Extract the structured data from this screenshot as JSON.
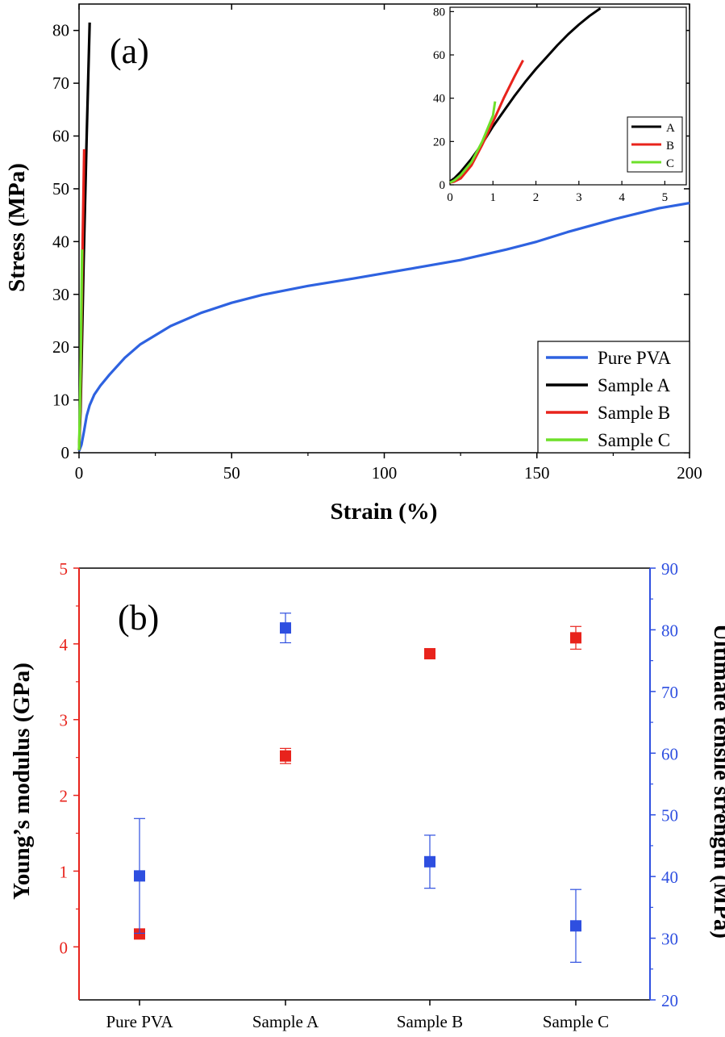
{
  "chart_data": [
    {
      "id": "a",
      "type": "line",
      "panel_label": "(a)",
      "xlabel": "Strain (%)",
      "ylabel": "Stress (MPa)",
      "xlim": [
        0,
        200
      ],
      "ylim": [
        0,
        85
      ],
      "xticks": [
        0,
        50,
        100,
        150,
        200
      ],
      "yticks": [
        0,
        10,
        20,
        30,
        40,
        50,
        60,
        70,
        80
      ],
      "legend_position": "bottom-right",
      "series": [
        {
          "name": "Pure PVA",
          "color": "#2e62e0",
          "x": [
            0,
            0.8,
            1.6,
            2.5,
            3.5,
            5,
            7,
            10,
            15,
            20,
            30,
            40,
            50,
            60,
            75,
            90,
            100,
            110,
            125,
            140,
            150,
            160,
            175,
            190,
            200
          ],
          "y": [
            0.3,
            1.5,
            4,
            7,
            9,
            11,
            12.7,
            14.8,
            18,
            20.5,
            24,
            26.5,
            28.4,
            29.9,
            31.6,
            33,
            34,
            35,
            36.5,
            38.5,
            40,
            41.8,
            44.2,
            46.3,
            47.3
          ]
        },
        {
          "name": "Sample A",
          "color": "#000000",
          "x": [
            0,
            0.5,
            1,
            1.5,
            2,
            2.5,
            3,
            3.5
          ],
          "y": [
            0.5,
            8,
            22,
            36,
            48,
            60,
            71,
            81.5
          ]
        },
        {
          "name": "Sample B",
          "color": "#e8231c",
          "x": [
            0,
            0.4,
            0.8,
            1.2,
            1.7
          ],
          "y": [
            0.5,
            8,
            24,
            40,
            57.5
          ]
        },
        {
          "name": "Sample C",
          "color": "#6ee02a",
          "x": [
            0,
            0.3,
            0.6,
            1.0
          ],
          "y": [
            0.5,
            8,
            20,
            38.5
          ]
        }
      ],
      "inset": {
        "xlim": [
          0,
          5.5
        ],
        "ylim": [
          0,
          82
        ],
        "xticks": [
          0,
          1,
          2,
          3,
          4,
          5
        ],
        "yticks": [
          0,
          20,
          40,
          60,
          80
        ],
        "legend_position": "right",
        "series": [
          {
            "name": "A",
            "color": "#000000",
            "x": [
              0,
              0.1,
              0.25,
              0.5,
              0.75,
              1,
              1.25,
              1.5,
              1.75,
              2,
              2.25,
              2.5,
              2.75,
              3,
              3.25,
              3.5
            ],
            "y": [
              1.5,
              3,
              6,
              12,
              19,
              27,
              34,
              41,
              47.5,
              53.5,
              59,
              64.5,
              69.5,
              74,
              78,
              81.5
            ]
          },
          {
            "name": "B",
            "color": "#e8231c",
            "x": [
              0,
              0.1,
              0.25,
              0.5,
              0.75,
              1,
              1.25,
              1.5,
              1.7
            ],
            "y": [
              1,
              1.5,
              3,
              9,
              18.5,
              29,
              40,
              50,
              57.5
            ]
          },
          {
            "name": "C",
            "color": "#6ee02a",
            "x": [
              0,
              0.1,
              0.25,
              0.5,
              0.75,
              1,
              1.05
            ],
            "y": [
              1,
              2,
              4.5,
              10.5,
              20,
              32,
              38.5
            ]
          }
        ]
      }
    },
    {
      "id": "b",
      "type": "scatter",
      "panel_label": "(b)",
      "categories": [
        "Pure PVA",
        "Sample A",
        "Sample B",
        "Sample C"
      ],
      "ylabel_left": "Young’s modulus (GPa)",
      "ylabel_right": "Ultimate tensile strength (MPa)",
      "ylim_left": [
        -0.7,
        5
      ],
      "ylim_right": [
        20,
        90
      ],
      "yticks_left": [
        0,
        1,
        2,
        3,
        4,
        5
      ],
      "yticks_right": [
        20,
        30,
        40,
        50,
        60,
        70,
        80,
        90
      ],
      "left_axis_color": "#e8231c",
      "right_axis_color": "#2e4fe0",
      "series": [
        {
          "name": "Young’s modulus",
          "axis": "left",
          "color": "#e8231c",
          "values": [
            0.17,
            2.52,
            3.87,
            4.08
          ],
          "errors": [
            0.02,
            0.1,
            0.02,
            0.15
          ]
        },
        {
          "name": "Ultimate tensile strength",
          "axis": "right",
          "color": "#2e4fe0",
          "values": [
            40.1,
            80.3,
            42.4,
            32
          ],
          "errors": [
            9.3,
            2.4,
            4.3,
            5.9
          ]
        }
      ]
    }
  ]
}
